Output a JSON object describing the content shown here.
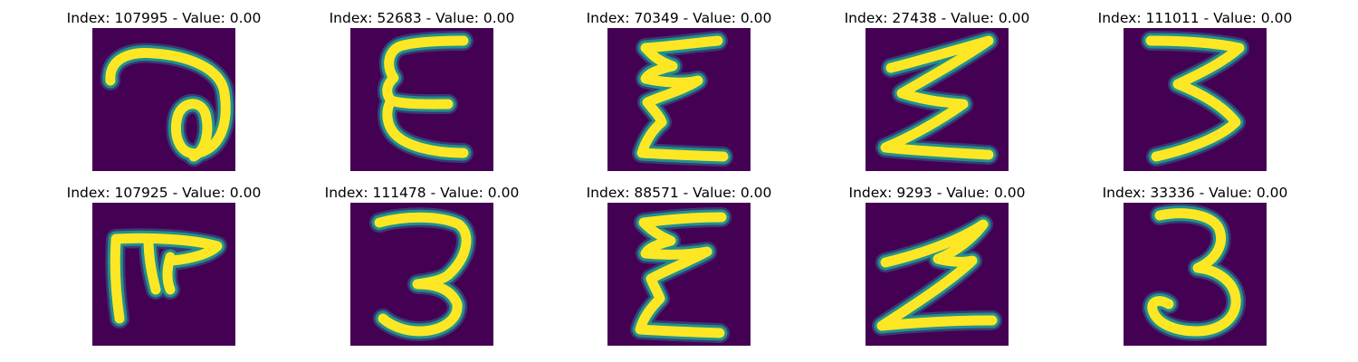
{
  "colormap": {
    "name": "viridis",
    "background": "#440154",
    "edge_dark": "#31688e",
    "edge": "#21918c",
    "edge_light": "#5ec962",
    "stroke": "#fde725"
  },
  "panels": [
    {
      "title": "Index: 107995 - Value: 0.00",
      "glyph": "loop-a"
    },
    {
      "title": "Index: 52683 - Value: 0.00",
      "glyph": "epsilon-e"
    },
    {
      "title": "Index: 70349 - Value: 0.00",
      "glyph": "sigma-e"
    },
    {
      "title": "Index: 27438 - Value: 0.00",
      "glyph": "sigma"
    },
    {
      "title": "Index: 111011 - Value: 0.00",
      "glyph": "three"
    },
    {
      "title": "Index: 107925 - Value: 0.00",
      "glyph": "tau-f"
    },
    {
      "title": "Index: 111478 - Value: 0.00",
      "glyph": "three"
    },
    {
      "title": "Index: 88571 - Value: 0.00",
      "glyph": "sigma-e"
    },
    {
      "title": "Index: 9293 - Value: 0.00",
      "glyph": "sigma"
    },
    {
      "title": "Index: 33336 - Value: 0.00",
      "glyph": "three"
    }
  ]
}
